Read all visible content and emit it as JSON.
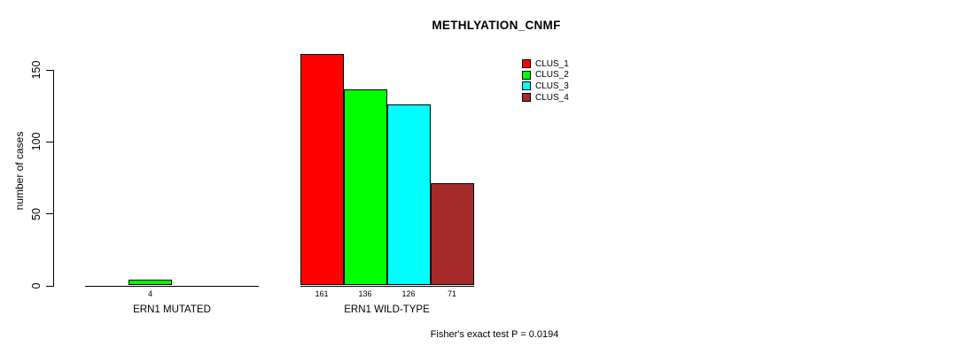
{
  "chart_data": {
    "type": "bar",
    "title": "METHLYATION_CNMF",
    "ylabel": "number of cases",
    "xlabel": "",
    "ylim": [
      0,
      165
    ],
    "yticks": [
      0,
      50,
      100,
      150
    ],
    "grid": false,
    "legend_position": "top-right",
    "categories": [
      "ERN1 MUTATED",
      "ERN1 WILD-TYPE"
    ],
    "series": [
      {
        "name": "CLUS_1",
        "color": "#ff0000",
        "values": [
          0,
          161
        ]
      },
      {
        "name": "CLUS_2",
        "color": "#00ff00",
        "values": [
          4,
          136
        ]
      },
      {
        "name": "CLUS_3",
        "color": "#00ffff",
        "values": [
          0,
          126
        ]
      },
      {
        "name": "CLUS_4",
        "color": "#a52a2a",
        "values": [
          0,
          71
        ]
      }
    ],
    "bar_value_labels": "shown under each nonzero bar",
    "annotation": "Fisher's exact test P = 0.0194"
  }
}
